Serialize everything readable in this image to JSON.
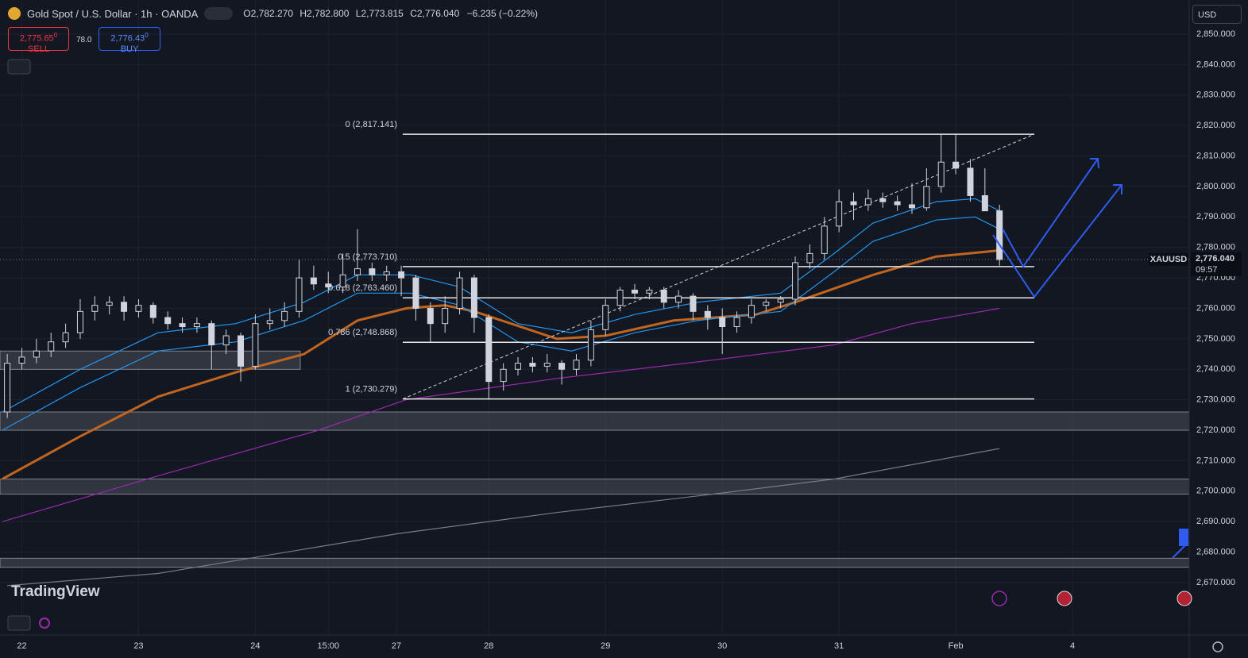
{
  "header": {
    "symbol": "Gold Spot / U.S. Dollar · 1h · OANDA",
    "o_key": "O",
    "o": "2,782.270",
    "h_key": "H",
    "h": "2,782.800",
    "l_key": "L",
    "l": "2,773.815",
    "c_key": "C",
    "c": "2,776.040",
    "change": "−6.235 (−0.22%)",
    "sell_price": "2,775.65",
    "sell_frac": "0",
    "sell": "SELL",
    "spread": "78.0",
    "buy_price": "2,776.43",
    "buy_frac": "0",
    "buy": "BUY",
    "currency": "USD",
    "logo": "TradingView"
  },
  "chart_data": {
    "type": "candlestick",
    "symbol_label": "XAUUSD",
    "last_price_label": "2,776.040",
    "last_price": 2776.04,
    "countdown": "09:57",
    "x": [
      1,
      4,
      7,
      10,
      13,
      16,
      19,
      22,
      25,
      28,
      31,
      34,
      37,
      40,
      43,
      46,
      49,
      52,
      55,
      58,
      61,
      64,
      67,
      70,
      73,
      76,
      79,
      82,
      85,
      88,
      91,
      94,
      97,
      100,
      103,
      106,
      109,
      112,
      115,
      118,
      121,
      124,
      127,
      130,
      133,
      136,
      139,
      142,
      145,
      148,
      151,
      154,
      157,
      160,
      163,
      166,
      169,
      172,
      175,
      178,
      181,
      184,
      187,
      190,
      193,
      196,
      199,
      202,
      205
    ],
    "open": [
      2726,
      2742,
      2744,
      2746,
      2749,
      2752,
      2759,
      2761,
      2762,
      2759,
      2761,
      2757,
      2755,
      2754,
      2755,
      2748,
      2751,
      2741,
      2755,
      2756,
      2759,
      2770,
      2768,
      2767,
      2771,
      2773,
      2771,
      2772,
      2770,
      2760,
      2755,
      2760,
      2770,
      2757,
      2736,
      2740,
      2742,
      2741,
      2742,
      2740,
      2743,
      2753,
      2761,
      2766,
      2765,
      2766,
      2762,
      2764,
      2759,
      2757,
      2754,
      2757,
      2761,
      2762,
      2763,
      2775,
      2778,
      2787,
      2795,
      2794,
      2796,
      2795,
      2794,
      2793,
      2800,
      2808,
      2806,
      2797,
      2792
    ],
    "high": [
      2745,
      2747,
      2750,
      2752,
      2755,
      2763,
      2764,
      2764,
      2764,
      2763,
      2762,
      2759,
      2757,
      2757,
      2756,
      2753,
      2752,
      2758,
      2760,
      2762,
      2776,
      2774,
      2772,
      2778,
      2786,
      2775,
      2774,
      2774,
      2771,
      2762,
      2764,
      2772,
      2771,
      2758,
      2742,
      2744,
      2744,
      2745,
      2743,
      2745,
      2756,
      2763,
      2767,
      2768,
      2767,
      2767,
      2766,
      2765,
      2761,
      2760,
      2759,
      2763,
      2763,
      2764,
      2777,
      2781,
      2790,
      2799,
      2798,
      2799,
      2798,
      2797,
      2801,
      2806,
      2817,
      2817,
      2809,
      2806,
      2794
    ],
    "low": [
      2724,
      2740,
      2742,
      2744,
      2747,
      2750,
      2756,
      2758,
      2756,
      2757,
      2755,
      2753,
      2752,
      2752,
      2740,
      2745,
      2736,
      2740,
      2753,
      2754,
      2757,
      2766,
      2765,
      2765,
      2769,
      2769,
      2769,
      2764,
      2756,
      2749,
      2752,
      2758,
      2752,
      2730,
      2733,
      2738,
      2739,
      2739,
      2735,
      2738,
      2741,
      2751,
      2759,
      2763,
      2763,
      2760,
      2760,
      2756,
      2753,
      2745,
      2752,
      2755,
      2759,
      2760,
      2761,
      2773,
      2776,
      2785,
      2789,
      2792,
      2793,
      2792,
      2791,
      2792,
      2798,
      2804,
      2795,
      2792,
      2774
    ],
    "close": [
      2742,
      2744,
      2746,
      2749,
      2752,
      2759,
      2761,
      2762,
      2759,
      2761,
      2757,
      2755,
      2754,
      2755,
      2748,
      2751,
      2741,
      2755,
      2756,
      2759,
      2770,
      2768,
      2767,
      2771,
      2773,
      2771,
      2772,
      2770,
      2760,
      2755,
      2760,
      2770,
      2757,
      2736,
      2740,
      2742,
      2741,
      2742,
      2740,
      2743,
      2753,
      2761,
      2766,
      2765,
      2766,
      2762,
      2764,
      2759,
      2757,
      2754,
      2757,
      2761,
      2762,
      2763,
      2775,
      2778,
      2787,
      2795,
      2794,
      2796,
      2795,
      2794,
      2793,
      2800,
      2808,
      2806,
      2797,
      2792,
      2776
    ],
    "lines": [
      {
        "color": "#c0651f",
        "x": [
          0,
          16,
          32,
          48,
          62,
          73,
          83,
          91,
          97,
          114,
          124,
          138,
          155,
          163,
          179,
          192,
          205
        ],
        "values": [
          2704,
          2718,
          2731,
          2739,
          2745,
          2756,
          2760,
          2761,
          2759,
          2750,
          2751,
          2756,
          2758,
          2762,
          2771,
          2777,
          2779
        ]
      },
      {
        "color": "#9c27b0",
        "x": [
          0,
          32,
          65,
          83,
          114,
          146,
          171,
          187,
          205
        ],
        "values": [
          2690,
          2705,
          2720,
          2730,
          2737,
          2743,
          2748,
          2755,
          2760
        ]
      },
      {
        "color": "#787b86",
        "x": [
          1,
          32,
          81,
          114,
          146,
          171,
          205
        ],
        "values": [
          2669,
          2673,
          2686,
          2693,
          2699,
          2704,
          2714
        ]
      },
      {
        "color": "#2196f3",
        "x": [
          0,
          16,
          32,
          48,
          62,
          73,
          84,
          94,
          106,
          117,
          130,
          143,
          160,
          171,
          179,
          192,
          200,
          205
        ],
        "values": [
          2726,
          2740,
          2752,
          2755,
          2762,
          2771,
          2771,
          2767,
          2755,
          2752,
          2758,
          2762,
          2765,
          2778,
          2788,
          2795,
          2796,
          2792
        ]
      },
      {
        "color": "#2196f3",
        "x": [
          0,
          16,
          32,
          48,
          62,
          73,
          84,
          94,
          106,
          117,
          130,
          143,
          160,
          171,
          179,
          192,
          200,
          205
        ],
        "values": [
          2720,
          2734,
          2746,
          2749,
          2756,
          2765,
          2765,
          2761,
          2749,
          2746,
          2752,
          2756,
          2759,
          2772,
          2782,
          2789,
          2790,
          2786
        ]
      }
    ],
    "fib_levels": [
      {
        "value": 2817.141,
        "label": "0 (2,817.141)"
      },
      {
        "value": 2773.71,
        "label": "0.5 (2,773.710)"
      },
      {
        "value": 2763.46,
        "label": "0.618 (2,763.460)"
      },
      {
        "value": 2748.868,
        "label": "0.786 (2,748.868)"
      },
      {
        "value": 2730.279,
        "label": "1 (2,730.279)"
      }
    ],
    "zones": [
      [
        2740,
        2746
      ],
      [
        2720,
        2726
      ],
      [
        2699,
        2704
      ],
      [
        2675,
        2678
      ]
    ],
    "xlim": [
      0,
      244
    ],
    "ylim": [
      2652.8,
      2861.2
    ],
    "xticks": [
      {
        "value": 4,
        "label": "22"
      },
      {
        "value": 28,
        "label": "23"
      },
      {
        "value": 52,
        "label": "24"
      },
      {
        "value": 67,
        "label": "15:00"
      },
      {
        "value": 81,
        "label": "27"
      },
      {
        "value": 100,
        "label": "28"
      },
      {
        "value": 124,
        "label": "29"
      },
      {
        "value": 148,
        "label": "30"
      },
      {
        "value": 172,
        "label": "31"
      },
      {
        "value": 196,
        "label": "Feb"
      },
      {
        "value": 220,
        "label": "4"
      }
    ],
    "yticks": [
      {
        "value": 2670,
        "label": "2,670.000"
      },
      {
        "value": 2680,
        "label": "2,680.000"
      },
      {
        "value": 2690,
        "label": "2,690.000"
      },
      {
        "value": 2700,
        "label": "2,700.000"
      },
      {
        "value": 2710,
        "label": "2,710.000"
      },
      {
        "value": 2720,
        "label": "2,720.000"
      },
      {
        "value": 2730,
        "label": "2,730.000"
      },
      {
        "value": 2740,
        "label": "2,740.000"
      },
      {
        "value": 2750,
        "label": "2,750.000"
      },
      {
        "value": 2760,
        "label": "2,760.000"
      },
      {
        "value": 2770,
        "label": "2,770.000"
      },
      {
        "value": 2780,
        "label": "2,780.000"
      },
      {
        "value": 2790,
        "label": "2,790.000"
      },
      {
        "value": 2800,
        "label": "2,800.000"
      },
      {
        "value": 2810,
        "label": "2,810.000"
      },
      {
        "value": 2820,
        "label": "2,820.000"
      },
      {
        "value": 2830,
        "label": "2,830.000"
      },
      {
        "value": 2840,
        "label": "2,840.000"
      },
      {
        "value": 2850,
        "label": "2,850.000"
      }
    ],
    "grid": true,
    "up_color": "#d1d4dc",
    "down_color": "#d1d4dc"
  }
}
